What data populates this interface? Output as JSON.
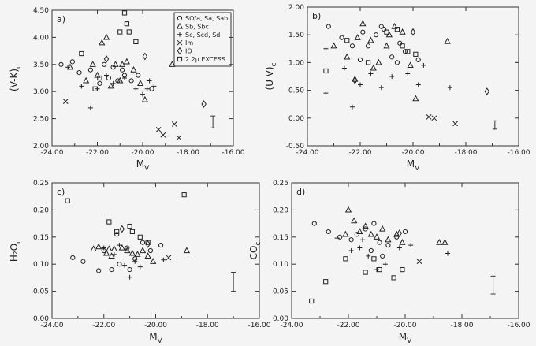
{
  "figure": {
    "legend": [
      {
        "symbol": "circle",
        "label": "SO/a, Sa, Sab"
      },
      {
        "symbol": "triangle",
        "label": "Sb, Sbc"
      },
      {
        "symbol": "plus",
        "label": "Sc, Scd, Sd"
      },
      {
        "symbol": "cross",
        "label": "Im"
      },
      {
        "symbol": "diamond",
        "label": "IO"
      },
      {
        "symbol": "square",
        "label": "2.2μ EXCESS"
      }
    ]
  },
  "chart_data": [
    {
      "panel": "a)",
      "type": "scatter",
      "xlabel": "M",
      "xlabel_sub": "V",
      "ylabel": "(V-K)",
      "ylabel_sub": "c",
      "xlim": [
        -24,
        -16
      ],
      "ylim": [
        2.0,
        4.5
      ],
      "xticks": [
        "-24.00",
        "-22.00",
        "-20.00",
        "-18.00",
        "-16.00"
      ],
      "yticks": [
        "2.00",
        "2.50",
        "3.00",
        "3.50",
        "4.00",
        "4.50"
      ],
      "error_bar": {
        "x": -16.9,
        "y1": 2.33,
        "y2": 2.55
      },
      "points": {
        "circle": [
          [
            -23.6,
            3.5
          ],
          [
            -23.1,
            3.55
          ],
          [
            -22.8,
            3.35
          ],
          [
            -22.3,
            3.4
          ],
          [
            -21.9,
            3.15
          ],
          [
            -21.5,
            3.25
          ],
          [
            -21.1,
            3.2
          ],
          [
            -20.8,
            3.3
          ],
          [
            -20.5,
            3.2
          ],
          [
            -20.2,
            3.3
          ],
          [
            -19.6,
            3.05
          ],
          [
            -21.7,
            3.5
          ],
          [
            -21.3,
            3.45
          ],
          [
            -20.9,
            3.4
          ]
        ],
        "triangle": [
          [
            -23.2,
            3.45
          ],
          [
            -22.5,
            3.2
          ],
          [
            -22.2,
            3.5
          ],
          [
            -21.8,
            3.9
          ],
          [
            -21.6,
            4.0
          ],
          [
            -21.4,
            3.1
          ],
          [
            -21.2,
            3.5
          ],
          [
            -21.0,
            3.2
          ],
          [
            -20.7,
            3.55
          ],
          [
            -20.4,
            3.4
          ],
          [
            -20.1,
            3.15
          ],
          [
            -19.9,
            2.85
          ],
          [
            -18.7,
            3.5
          ],
          [
            -22.0,
            3.3
          ],
          [
            -20.9,
            3.5
          ]
        ],
        "plus": [
          [
            -23.3,
            3.45
          ],
          [
            -22.7,
            3.1
          ],
          [
            -22.3,
            2.7
          ],
          [
            -22.0,
            3.05
          ],
          [
            -21.6,
            3.3
          ],
          [
            -21.3,
            3.15
          ],
          [
            -20.8,
            3.25
          ],
          [
            -20.3,
            3.05
          ],
          [
            -20.0,
            2.95
          ],
          [
            -19.8,
            3.05
          ],
          [
            -19.7,
            3.2
          ],
          [
            -19.5,
            3.1
          ]
        ],
        "cross": [
          [
            -23.4,
            2.82
          ],
          [
            -19.3,
            2.3
          ],
          [
            -19.1,
            2.2
          ],
          [
            -18.6,
            2.4
          ],
          [
            -18.4,
            2.15
          ]
        ],
        "diamond": [
          [
            -21.6,
            3.6
          ],
          [
            -19.9,
            3.65
          ],
          [
            -17.3,
            2.77
          ]
        ],
        "square": [
          [
            -22.7,
            3.7
          ],
          [
            -22.1,
            3.05
          ],
          [
            -21.0,
            4.1
          ],
          [
            -20.8,
            4.45
          ],
          [
            -20.7,
            4.25
          ],
          [
            -20.6,
            4.1
          ],
          [
            -20.3,
            3.92
          ],
          [
            -21.9,
            3.25
          ]
        ]
      }
    },
    {
      "panel": "b)",
      "type": "scatter",
      "xlabel": "M",
      "xlabel_sub": "V",
      "ylabel": "(U-V)",
      "ylabel_sub": "c",
      "xlim": [
        -24,
        -16
      ],
      "ylim": [
        -0.5,
        2.0
      ],
      "xticks": [
        "-24.00",
        "-22.00",
        "-20.00",
        "-18.00",
        "-16.00"
      ],
      "yticks": [
        "-0.50",
        "0.00",
        "0.50",
        "1.00",
        "1.50",
        "2.00"
      ],
      "error_bar": {
        "x": -16.9,
        "y1": -0.2,
        "y2": -0.05
      },
      "points": {
        "circle": [
          [
            -23.2,
            1.65
          ],
          [
            -22.7,
            1.45
          ],
          [
            -22.3,
            1.3
          ],
          [
            -22.0,
            1.05
          ],
          [
            -21.7,
            1.3
          ],
          [
            -21.4,
            1.5
          ],
          [
            -21.1,
            1.6
          ],
          [
            -20.8,
            1.1
          ],
          [
            -20.6,
            1.0
          ],
          [
            -20.3,
            1.2
          ],
          [
            -19.8,
            1.05
          ],
          [
            -21.9,
            1.55
          ],
          [
            -21.2,
            1.65
          ],
          [
            -20.5,
            1.35
          ]
        ],
        "triangle": [
          [
            -23.0,
            1.3
          ],
          [
            -22.5,
            1.1
          ],
          [
            -22.2,
            0.7
          ],
          [
            -21.9,
            1.7
          ],
          [
            -21.6,
            1.4
          ],
          [
            -21.3,
            1.0
          ],
          [
            -21.0,
            1.3
          ],
          [
            -20.7,
            1.65
          ],
          [
            -20.4,
            1.55
          ],
          [
            -20.1,
            0.95
          ],
          [
            -19.9,
            0.35
          ],
          [
            -18.7,
            1.38
          ],
          [
            -22.1,
            1.45
          ],
          [
            -21.5,
            0.9
          ],
          [
            -20.9,
            1.5
          ]
        ],
        "plus": [
          [
            -23.3,
            1.25
          ],
          [
            -23.3,
            0.45
          ],
          [
            -22.6,
            0.9
          ],
          [
            -22.3,
            0.2
          ],
          [
            -22.0,
            0.6
          ],
          [
            -21.6,
            0.8
          ],
          [
            -21.2,
            0.55
          ],
          [
            -20.8,
            0.75
          ],
          [
            -20.2,
            0.8
          ],
          [
            -19.6,
            0.95
          ],
          [
            -18.6,
            0.55
          ],
          [
            -19.8,
            0.6
          ]
        ],
        "cross": [
          [
            -19.4,
            0.02
          ],
          [
            -19.2,
            0.0
          ],
          [
            -18.4,
            -0.1
          ]
        ],
        "diamond": [
          [
            -22.2,
            0.68
          ],
          [
            -20.0,
            1.55
          ],
          [
            -17.2,
            0.48
          ]
        ],
        "square": [
          [
            -23.3,
            0.85
          ],
          [
            -22.5,
            1.4
          ],
          [
            -21.0,
            1.55
          ],
          [
            -20.6,
            1.6
          ],
          [
            -20.4,
            1.3
          ],
          [
            -20.2,
            1.2
          ],
          [
            -19.9,
            1.15
          ],
          [
            -21.7,
            1.0
          ]
        ]
      }
    },
    {
      "panel": "c)",
      "type": "scatter",
      "xlabel": "M",
      "xlabel_sub": "V",
      "ylabel": "H₂O",
      "ylabel_sub": "c",
      "xlim": [
        -24,
        -16
      ],
      "ylim": [
        0.0,
        0.25
      ],
      "xticks": [
        "-24.00",
        "-22.00",
        "-20.00",
        "-18.00",
        "-16.00"
      ],
      "yticks": [
        "0.00",
        "0.05",
        "0.10",
        "0.15",
        "0.20",
        "0.25"
      ],
      "error_bar": {
        "x": -17.0,
        "y1": 0.05,
        "y2": 0.085
      },
      "points": {
        "circle": [
          [
            -23.2,
            0.112
          ],
          [
            -22.8,
            0.105
          ],
          [
            -22.2,
            0.088
          ],
          [
            -22.0,
            0.125
          ],
          [
            -21.7,
            0.09
          ],
          [
            -21.4,
            0.1
          ],
          [
            -21.1,
            0.13
          ],
          [
            -20.8,
            0.11
          ],
          [
            -20.5,
            0.14
          ],
          [
            -20.2,
            0.125
          ],
          [
            -19.8,
            0.135
          ],
          [
            -21.5,
            0.155
          ],
          [
            -21.0,
            0.09
          ]
        ],
        "triangle": [
          [
            -22.4,
            0.128
          ],
          [
            -22.2,
            0.132
          ],
          [
            -21.9,
            0.12
          ],
          [
            -21.7,
            0.115
          ],
          [
            -21.6,
            0.128
          ],
          [
            -21.3,
            0.13
          ],
          [
            -21.1,
            0.125
          ],
          [
            -20.9,
            0.12
          ],
          [
            -20.7,
            0.118
          ],
          [
            -20.5,
            0.125
          ],
          [
            -20.3,
            0.115
          ],
          [
            -20.1,
            0.105
          ],
          [
            -18.8,
            0.125
          ],
          [
            -21.8,
            0.128
          ]
        ],
        "plus": [
          [
            -21.4,
            0.135
          ],
          [
            -21.2,
            0.098
          ],
          [
            -21.0,
            0.076
          ],
          [
            -20.8,
            0.105
          ],
          [
            -20.6,
            0.095
          ],
          [
            -19.7,
            0.108
          ],
          [
            -21.6,
            0.118
          ],
          [
            -22.0,
            0.13
          ]
        ],
        "cross": [
          [
            -19.5,
            0.112
          ]
        ],
        "diamond": [
          [
            -21.3,
            0.165
          ],
          [
            -20.3,
            0.137
          ]
        ],
        "square": [
          [
            -23.4,
            0.217
          ],
          [
            -21.8,
            0.178
          ],
          [
            -21.5,
            0.16
          ],
          [
            -21.0,
            0.17
          ],
          [
            -20.9,
            0.16
          ],
          [
            -20.6,
            0.15
          ],
          [
            -20.3,
            0.14
          ],
          [
            -18.9,
            0.228
          ]
        ]
      }
    },
    {
      "panel": "d)",
      "type": "scatter",
      "xlabel": "M",
      "xlabel_sub": "V",
      "ylabel": "CO",
      "ylabel_sub": "c",
      "xlim": [
        -24,
        -16
      ],
      "ylim": [
        0.0,
        0.25
      ],
      "xticks": [
        "-24.00",
        "-22.00",
        "-20.00",
        "-18.00",
        "-16.00"
      ],
      "yticks": [
        "0.00",
        "0.05",
        "0.10",
        "0.15",
        "0.20",
        "0.25"
      ],
      "error_bar": {
        "x": -16.9,
        "y1": 0.045,
        "y2": 0.078
      },
      "points": {
        "circle": [
          [
            -23.2,
            0.175
          ],
          [
            -22.7,
            0.16
          ],
          [
            -22.3,
            0.15
          ],
          [
            -21.9,
            0.145
          ],
          [
            -21.7,
            0.155
          ],
          [
            -21.4,
            0.165
          ],
          [
            -21.1,
            0.175
          ],
          [
            -20.9,
            0.14
          ],
          [
            -20.6,
            0.135
          ],
          [
            -20.3,
            0.15
          ],
          [
            -20.0,
            0.16
          ],
          [
            -21.2,
            0.125
          ],
          [
            -20.8,
            0.115
          ]
        ],
        "triangle": [
          [
            -22.0,
            0.2
          ],
          [
            -21.8,
            0.18
          ],
          [
            -21.6,
            0.16
          ],
          [
            -21.4,
            0.17
          ],
          [
            -21.2,
            0.155
          ],
          [
            -21.0,
            0.15
          ],
          [
            -20.8,
            0.165
          ],
          [
            -20.6,
            0.145
          ],
          [
            -20.3,
            0.155
          ],
          [
            -20.1,
            0.14
          ],
          [
            -18.8,
            0.14
          ],
          [
            -18.6,
            0.14
          ],
          [
            -22.1,
            0.155
          ]
        ],
        "plus": [
          [
            -22.4,
            0.148
          ],
          [
            -21.9,
            0.125
          ],
          [
            -21.6,
            0.13
          ],
          [
            -21.3,
            0.115
          ],
          [
            -21.0,
            0.09
          ],
          [
            -20.7,
            0.1
          ],
          [
            -20.2,
            0.13
          ],
          [
            -19.8,
            0.135
          ],
          [
            -18.5,
            0.12
          ],
          [
            -21.5,
            0.145
          ]
        ],
        "cross": [
          [
            -19.5,
            0.105
          ]
        ],
        "diamond": [
          [
            -20.2,
            0.157
          ]
        ],
        "square": [
          [
            -23.3,
            0.032
          ],
          [
            -22.8,
            0.068
          ],
          [
            -22.1,
            0.11
          ],
          [
            -21.4,
            0.085
          ],
          [
            -21.1,
            0.11
          ],
          [
            -20.9,
            0.09
          ],
          [
            -20.4,
            0.075
          ],
          [
            -20.1,
            0.09
          ]
        ]
      }
    }
  ]
}
